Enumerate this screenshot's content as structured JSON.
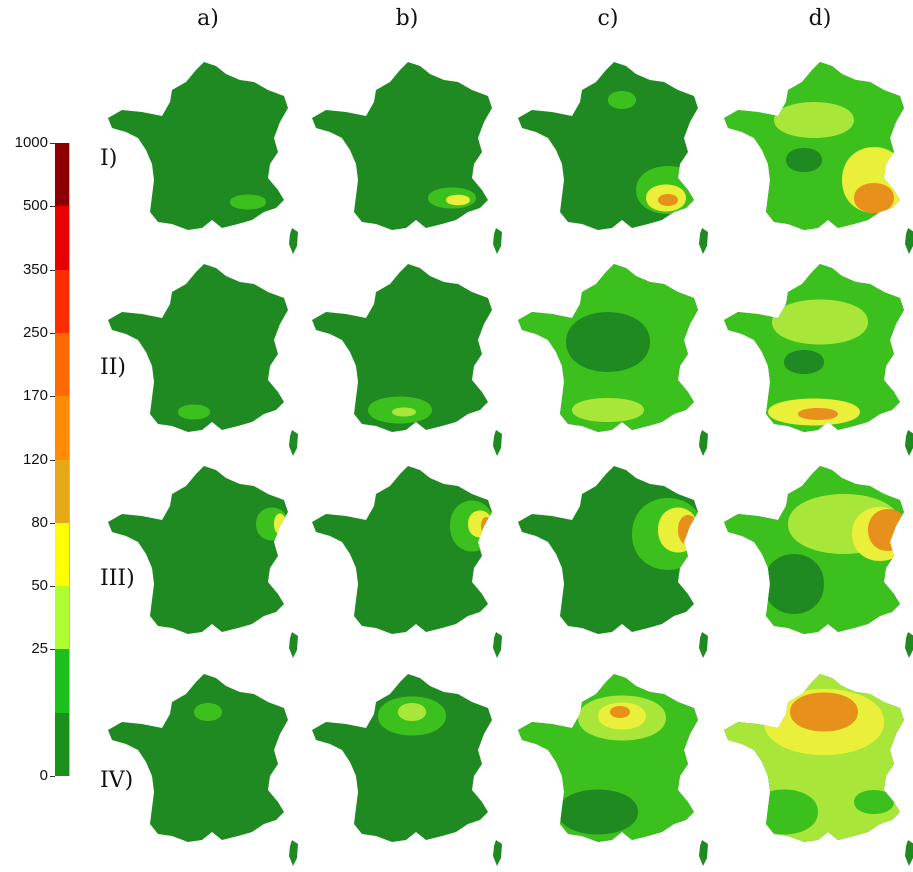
{
  "columns": [
    "a)",
    "b)",
    "c)",
    "d)"
  ],
  "rows": [
    "I)",
    "II)",
    "III)",
    "IV)"
  ],
  "legend": {
    "ticks": [
      "1000",
      "500",
      "350",
      "250",
      "170",
      "120",
      "80",
      "50",
      "25",
      "0"
    ],
    "colors": [
      "#8b0000",
      "#e80000",
      "#ff2c00",
      "#ff6a00",
      "#ff8c00",
      "#e6a817",
      "#ffff00",
      "#adff2f",
      "#1dbf1d",
      "#1a8f1a"
    ]
  },
  "colors": {
    "base_green": "#1f8a22",
    "mid_green": "#3cc01d",
    "yellow_green": "#a8e63a",
    "yellow": "#eaf03a",
    "orange": "#e8901c"
  }
}
